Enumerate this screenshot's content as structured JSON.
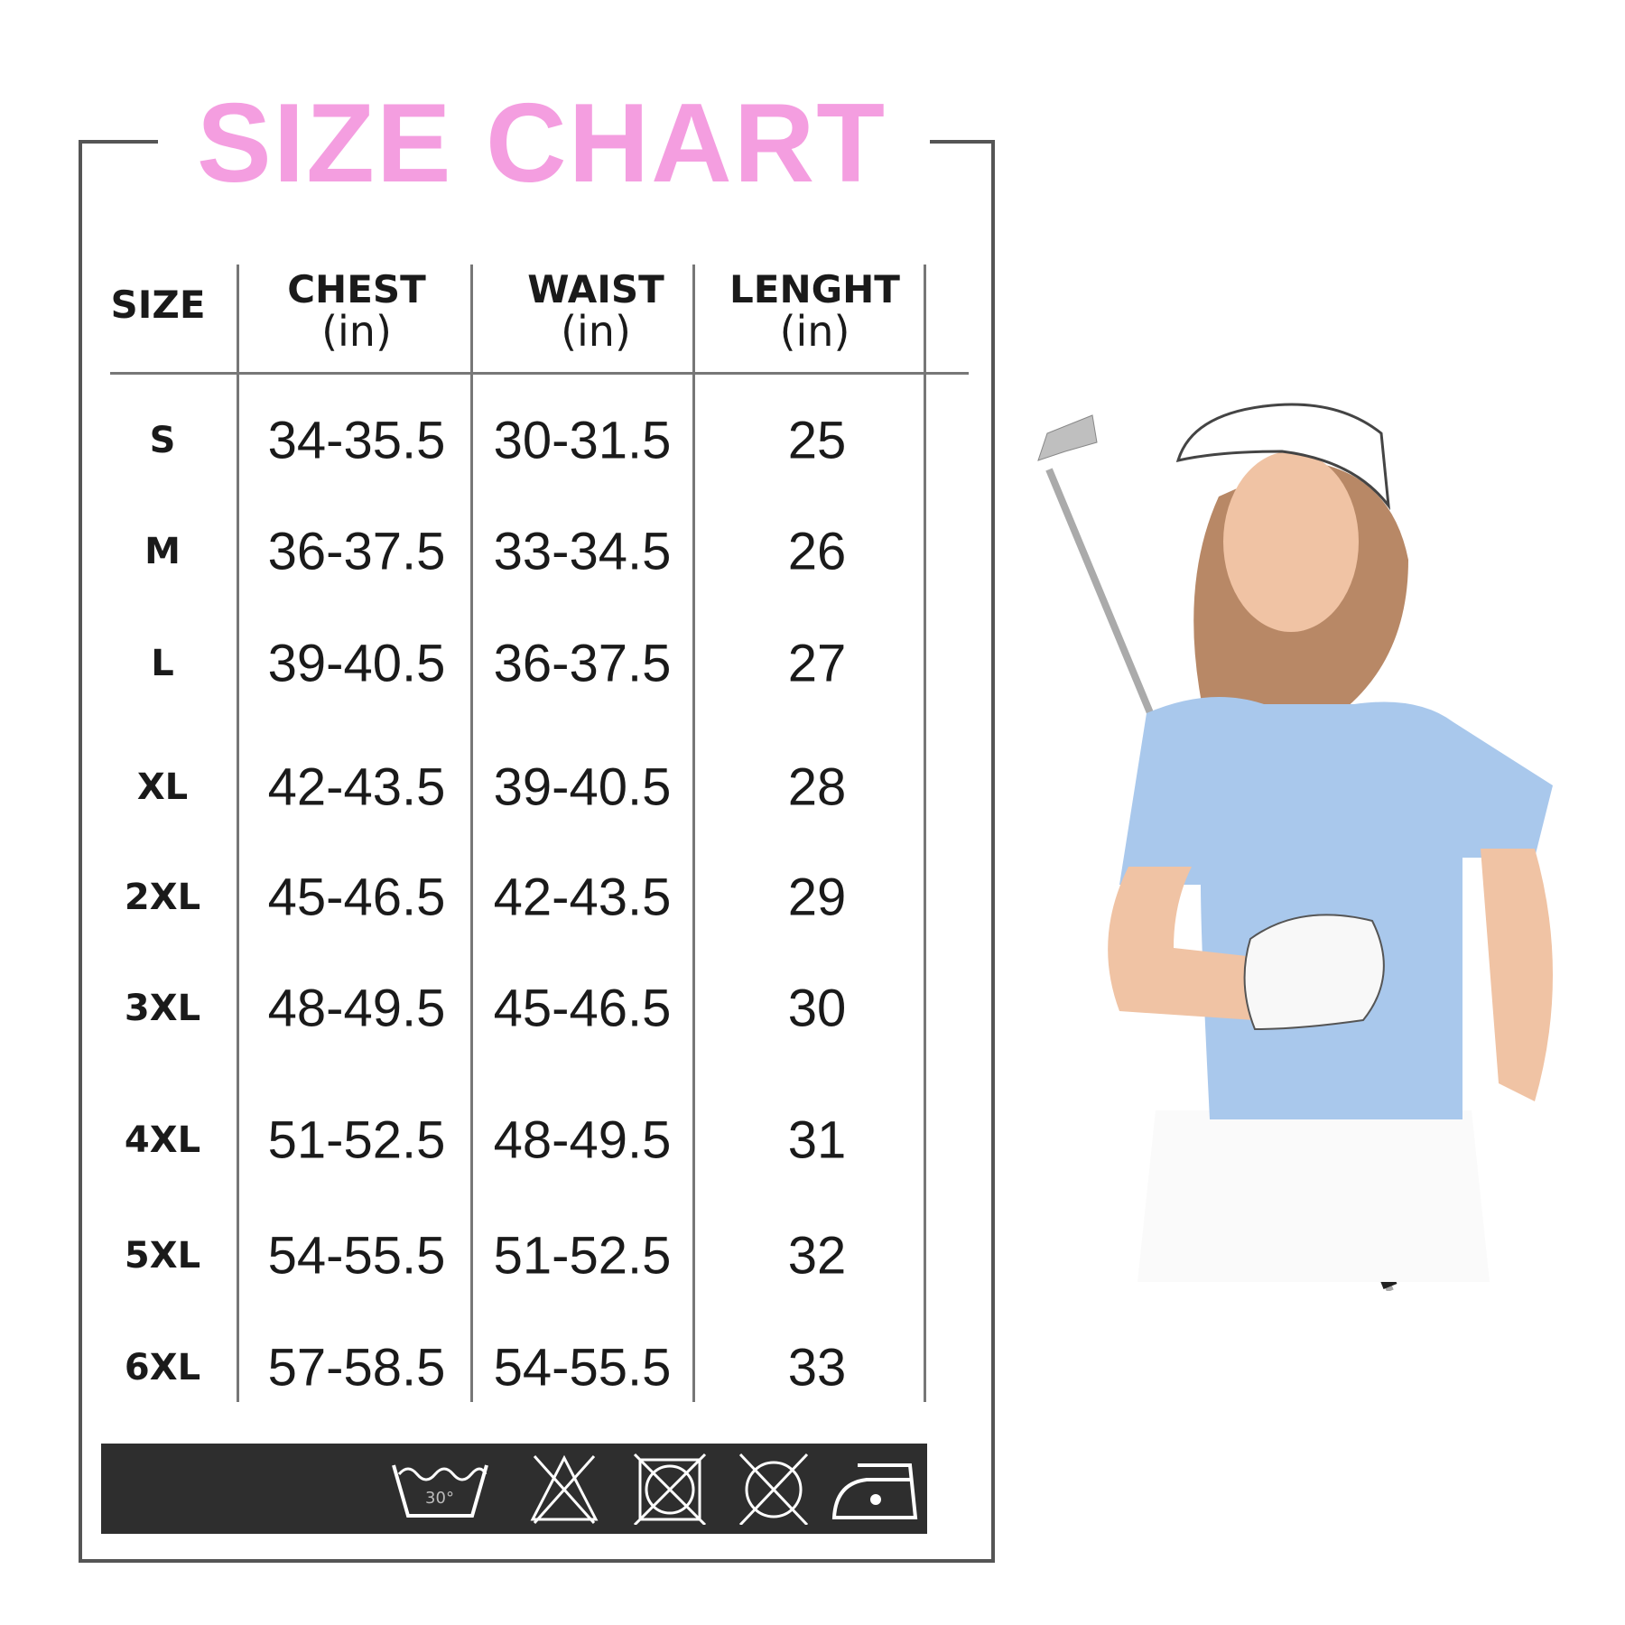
{
  "title": "SIZE CHART",
  "colors": {
    "title": "#f49ee0",
    "care_bar": "#2e2e2e",
    "frame": "#555555"
  },
  "table": {
    "headers": [
      {
        "main": "SIZE",
        "sub": ""
      },
      {
        "main": "CHEST",
        "sub": "(in)"
      },
      {
        "main": "WAIST",
        "sub": "(in)"
      },
      {
        "main": "LENGHT",
        "sub": "(in)"
      }
    ],
    "rows": [
      {
        "size": "S",
        "chest": "34-35.5",
        "waist": "30-31.5",
        "length": "25"
      },
      {
        "size": "M",
        "chest": "36-37.5",
        "waist": "33-34.5",
        "length": "26"
      },
      {
        "size": "L",
        "chest": "39-40.5",
        "waist": "36-37.5",
        "length": "27"
      },
      {
        "size": "XL",
        "chest": "42-43.5",
        "waist": "39-40.5",
        "length": "28"
      },
      {
        "size": "2XL",
        "chest": "45-46.5",
        "waist": "42-43.5",
        "length": "29"
      },
      {
        "size": "3XL",
        "chest": "48-49.5",
        "waist": "45-46.5",
        "length": "30"
      },
      {
        "size": "4XL",
        "chest": "51-52.5",
        "waist": "48-49.5",
        "length": "31"
      },
      {
        "size": "5XL",
        "chest": "54-55.5",
        "waist": "51-52.5",
        "length": "32"
      },
      {
        "size": "6XL",
        "chest": "57-58.5",
        "waist": "54-55.5",
        "length": "33"
      }
    ]
  },
  "care_icons": [
    {
      "name": "wash-30-icon",
      "label": "30°"
    },
    {
      "name": "do-not-bleach-icon"
    },
    {
      "name": "do-not-tumble-dry-icon"
    },
    {
      "name": "do-not-dry-clean-icon"
    },
    {
      "name": "iron-low-icon"
    }
  ]
}
